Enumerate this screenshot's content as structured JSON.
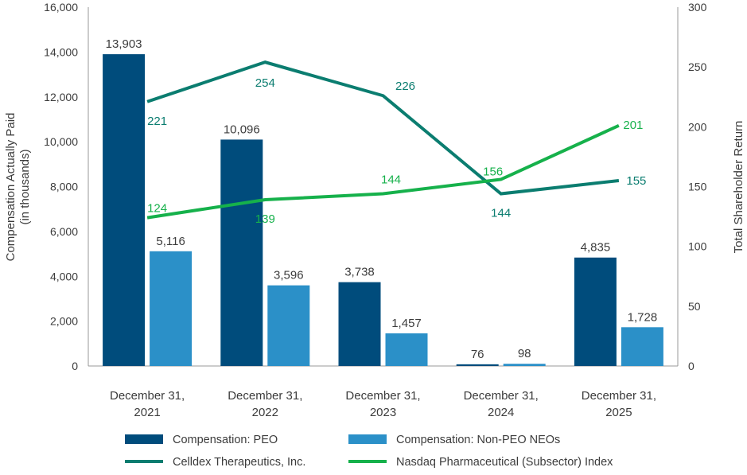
{
  "chart_data": {
    "type": "bar",
    "categories": [
      [
        "December 31,",
        "2021"
      ],
      [
        "December 31,",
        "2022"
      ],
      [
        "December 31,",
        "2023"
      ],
      [
        "December 31,",
        "2024"
      ],
      [
        "December 31,",
        "2025"
      ]
    ],
    "bar_series": [
      {
        "name": "Compensation: PEO",
        "color": "#004c7c",
        "values": [
          13903,
          10096,
          3738,
          76,
          4835
        ],
        "labels": [
          "13,903",
          "10,096",
          "3,738",
          "76",
          "4,835"
        ]
      },
      {
        "name": "Compensation: Non-PEO NEOs",
        "color": "#2b90c8",
        "values": [
          5116,
          3596,
          1457,
          98,
          1728
        ],
        "labels": [
          "5,116",
          "3,596",
          "1,457",
          "98",
          "1,728"
        ]
      }
    ],
    "line_series": [
      {
        "name": "Celldex Therapeutics, Inc.",
        "color": "#0b7d70",
        "values": [
          221,
          254,
          226,
          144,
          155
        ],
        "labels": [
          "221",
          "254",
          "226",
          "144",
          "155"
        ]
      },
      {
        "name": "Nasdaq Pharmaceutical (Subsector) Index",
        "color": "#16b14b",
        "values": [
          124,
          139,
          144,
          156,
          201
        ],
        "labels": [
          "124",
          "139",
          "144",
          "156",
          "201"
        ]
      }
    ],
    "left_axis": {
      "title": [
        "Compensation Actually Paid",
        "(in thousands)"
      ],
      "ylim": [
        0,
        16000
      ],
      "ticks": [
        0,
        2000,
        4000,
        6000,
        8000,
        10000,
        12000,
        14000,
        16000
      ],
      "tick_labels": [
        "0",
        "2,000",
        "4,000",
        "6,000",
        "8,000",
        "10,000",
        "12,000",
        "14,000",
        "16,000"
      ]
    },
    "right_axis": {
      "title": "Total Shareholder Return",
      "ylim": [
        0,
        300
      ],
      "ticks": [
        0,
        50,
        100,
        150,
        200,
        250,
        300
      ],
      "tick_labels": [
        "0",
        "50",
        "100",
        "150",
        "200",
        "250",
        "300"
      ]
    },
    "grid": false,
    "legend_position": "bottom"
  }
}
